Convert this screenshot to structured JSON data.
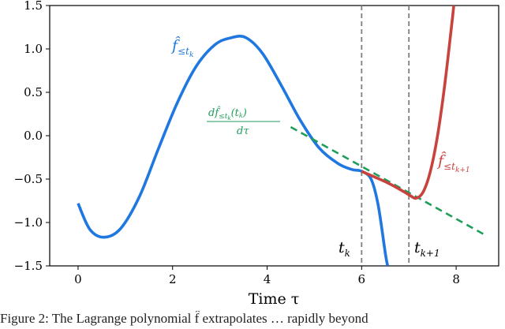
{
  "chart_data": {
    "type": "line",
    "xlabel": "Time τ",
    "ylabel": "",
    "xlim": [
      -0.6,
      8.9
    ],
    "ylim": [
      -1.5,
      1.5
    ],
    "xticks": [
      0,
      2,
      4,
      6,
      8
    ],
    "xtick_labels": [
      "0",
      "2",
      "4",
      "6",
      "8"
    ],
    "yticks": [
      -1.5,
      -1.0,
      -0.5,
      0.0,
      0.5,
      1.0,
      1.5
    ],
    "ytick_labels": [
      "−1.5",
      "−1.0",
      "−0.5",
      "0.0",
      "0.5",
      "1.0",
      "1.5"
    ],
    "grid": false,
    "series": [
      {
        "name": "f̂≤tk",
        "color": "#1f77e0",
        "style": "solid",
        "x": [
          0,
          0.25,
          0.55,
          0.9,
          1.3,
          1.7,
          2.1,
          2.5,
          2.9,
          3.25,
          3.55,
          3.9,
          4.3,
          4.7,
          5.1,
          5.5,
          5.8,
          6.0,
          6.2,
          6.35,
          6.5,
          6.55
        ],
        "y": [
          -0.78,
          -1.08,
          -1.17,
          -1.07,
          -0.7,
          -0.15,
          0.38,
          0.8,
          1.05,
          1.13,
          1.13,
          0.95,
          0.58,
          0.18,
          -0.14,
          -0.32,
          -0.39,
          -0.41,
          -0.5,
          -0.8,
          -1.35,
          -1.5
        ]
      },
      {
        "name": "f̂≤tk+1",
        "color": "#c8423e",
        "style": "solid",
        "x": [
          6.0,
          6.25,
          6.5,
          6.75,
          7.0,
          7.15,
          7.3,
          7.45,
          7.6,
          7.75,
          7.9,
          7.95
        ],
        "y": [
          -0.41,
          -0.47,
          -0.53,
          -0.6,
          -0.68,
          -0.72,
          -0.65,
          -0.42,
          -0.02,
          0.55,
          1.25,
          1.5
        ]
      },
      {
        "name": "",
        "color": "#1f9e5a",
        "style": "dashed",
        "x": [
          4.5,
          8.6
        ],
        "y": [
          0.1,
          -1.14
        ]
      }
    ],
    "vlines": [
      {
        "x": 6,
        "label": "tk",
        "color": "#7f7f7f"
      },
      {
        "x": 7,
        "label": "tk+1",
        "color": "#7f7f7f"
      }
    ],
    "annotations": [
      {
        "text": "f̂≤tk",
        "color": "#1f77e0"
      },
      {
        "text": "df̂≤tk(tk) / dτ",
        "color": "#1f9e5a"
      },
      {
        "text": "f̂≤tk+1",
        "color": "#c8423e"
      }
    ]
  },
  "caption": "Figure 2: The Lagrange polynomial f̂ extrapolates … rapidly beyond"
}
